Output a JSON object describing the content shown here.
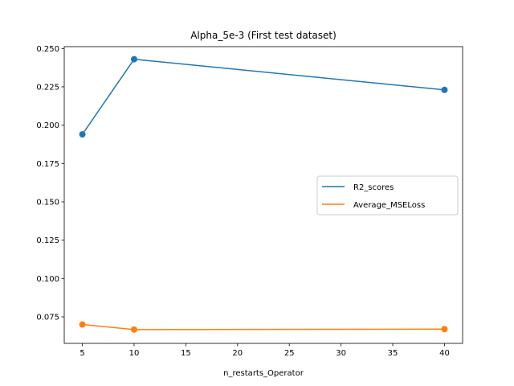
{
  "chart_data": {
    "type": "line",
    "title": "Alpha_5e-3 (First test dataset)",
    "xlabel": "n_restarts_Operator",
    "ylabel": "",
    "x": [
      5,
      10,
      40
    ],
    "xlim": [
      3.25,
      41.75
    ],
    "ylim": [
      0.0577,
      0.2512
    ],
    "xticks": [
      5,
      10,
      15,
      20,
      25,
      30,
      35,
      40
    ],
    "xtick_labels": [
      "5",
      "10",
      "15",
      "20",
      "25",
      "30",
      "35",
      "40"
    ],
    "yticks": [
      0.075,
      0.1,
      0.125,
      0.15,
      0.175,
      0.2,
      0.225,
      0.25
    ],
    "ytick_labels": [
      "0.075",
      "0.100",
      "0.125",
      "0.150",
      "0.175",
      "0.200",
      "0.225",
      "0.250"
    ],
    "series": [
      {
        "name": "R2_scores",
        "color": "#1f77b4",
        "values": [
          0.194,
          0.243,
          0.223
        ]
      },
      {
        "name": "Average_MSELoss",
        "color": "#ff7f0e",
        "values": [
          0.07,
          0.0667,
          0.067
        ]
      }
    ],
    "markers": "circle",
    "grid": false,
    "legend_position": "center-right"
  }
}
